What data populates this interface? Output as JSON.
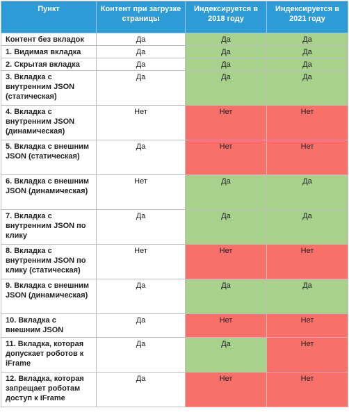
{
  "table": {
    "headers": [
      "Пункт",
      "Контент при загрузке страницы",
      "Индексируется в 2018 году",
      "Индексируется в 2021 году"
    ],
    "colors": {
      "header": "#2c9bd6",
      "yes": "#a9d18e",
      "no": "#f8706a"
    },
    "rows": [
      {
        "item": "Контент без вкладок",
        "on_load": "Да",
        "y2018": "Да",
        "y2021": "Да"
      },
      {
        "item": "1. Видимая вкладка",
        "on_load": "Да",
        "y2018": "Да",
        "y2021": "Да"
      },
      {
        "item": "2. Скрытая вкладка",
        "on_load": "Да",
        "y2018": "Да",
        "y2021": "Да"
      },
      {
        "item": "3. Вкладка с внутренним JSON (статическая)",
        "on_load": "Да",
        "y2018": "Да",
        "y2021": "Да"
      },
      {
        "item": "4. Вкладка с внутренним JSON (динамическая)",
        "on_load": "Нет",
        "y2018": "Нет",
        "y2021": "Нет"
      },
      {
        "item": "5. Вкладка с внешним JSON (статическая)",
        "on_load": "Да",
        "y2018": "Нет",
        "y2021": "Нет"
      },
      {
        "item": "6. Вкладка с внешним JSON (динамическая)",
        "on_load": "Нет",
        "y2018": "Да",
        "y2021": "Да"
      },
      {
        "item": "7. Вкладка с внутренним JSON по клику",
        "on_load": "Да",
        "y2018": "Да",
        "y2021": "Да"
      },
      {
        "item": "8. Вкладка с внутренним JSON по клику (статическая)",
        "on_load": "Нет",
        "y2018": "Нет",
        "y2021": "Нет"
      },
      {
        "item": "9. Вкладка с внешним JSON (динамическая)",
        "on_load": "Да",
        "y2018": "Да",
        "y2021": "Да"
      },
      {
        "item": "10. Вкладка с внешним JSON",
        "on_load": "Да",
        "y2018": "Нет",
        "y2021": "Нет"
      },
      {
        "item": "11. Вкладка, которая допускает роботов к iFrame",
        "on_load": "Да",
        "y2018": "Да",
        "y2021": "Нет"
      },
      {
        "item": "12. Вкладка, которая запрещает роботам доступ к iFrame",
        "on_load": "Да",
        "y2018": "Нет",
        "y2021": "Нет"
      }
    ]
  }
}
